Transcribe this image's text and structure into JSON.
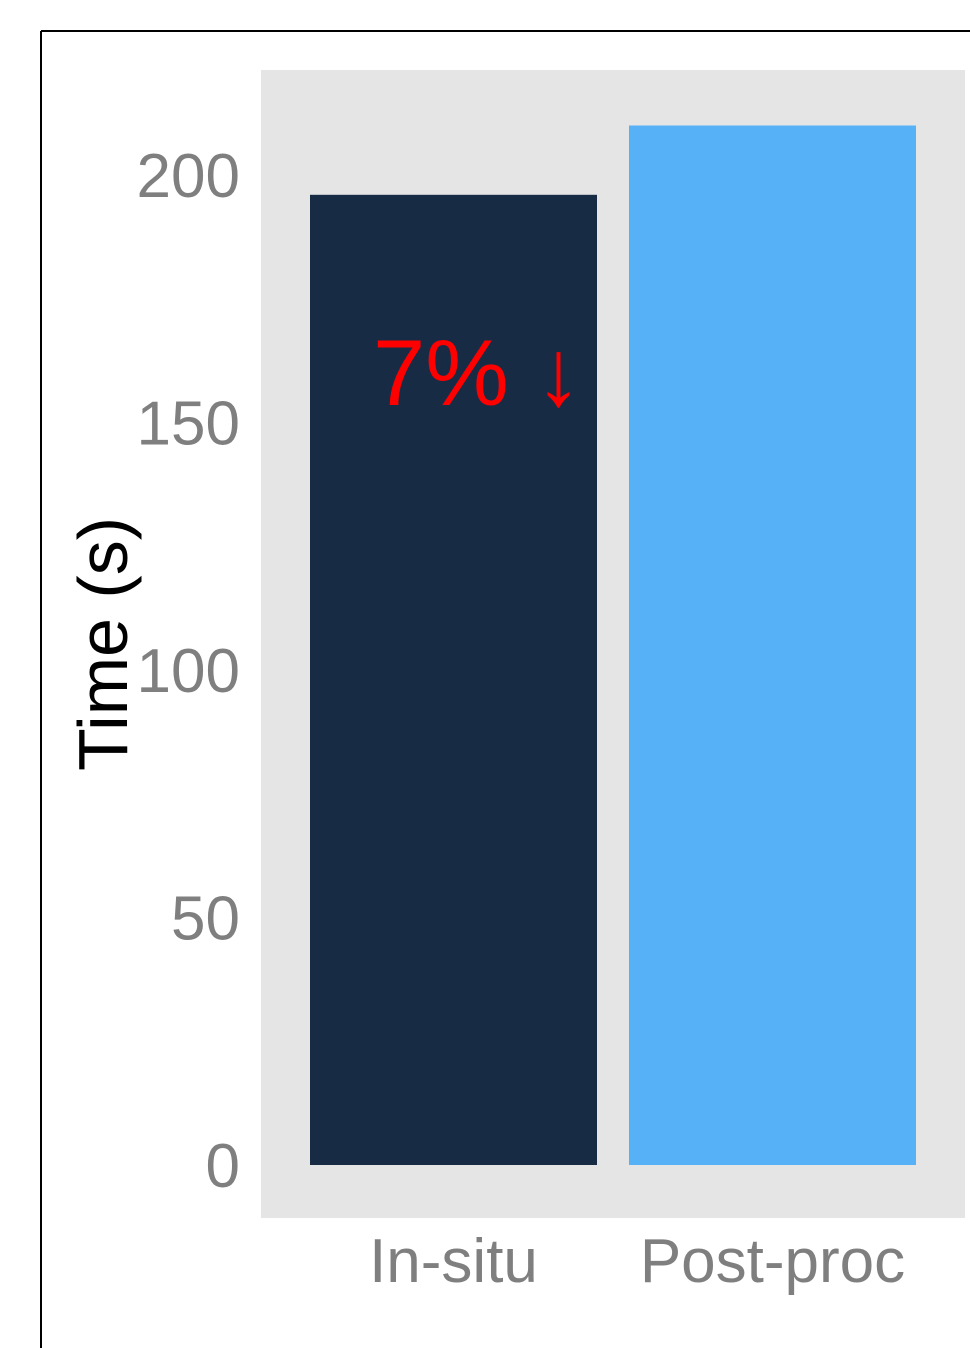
{
  "chart_data": {
    "type": "bar",
    "categories": [
      "In-situ",
      "Post-proc"
    ],
    "values": [
      196,
      210
    ],
    "ylabel": "Time (s)",
    "xlabel": "",
    "ylim": [
      0,
      220
    ],
    "yticks": [
      0,
      50,
      100,
      150,
      200
    ],
    "ytick_labels": [
      "0",
      "50",
      "100",
      "150",
      "200"
    ],
    "bar_colors": [
      "#172b44",
      "#56b1f7"
    ],
    "panel_background": "#e5e5e5",
    "grid": false,
    "legend": "none",
    "annotation": {
      "text": "7% ↓",
      "color": "#ff0000",
      "category": "In-situ",
      "y": 160
    }
  }
}
